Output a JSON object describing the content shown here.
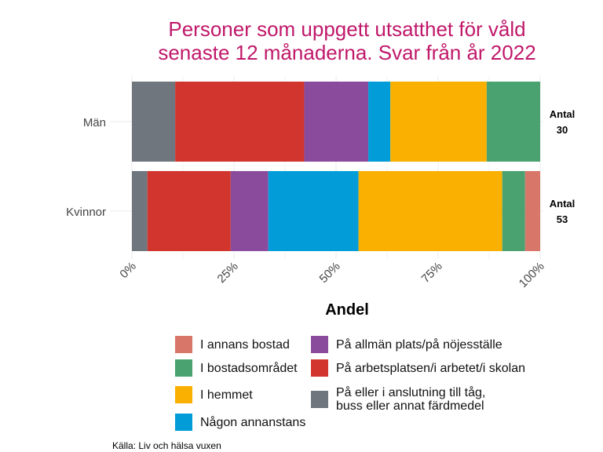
{
  "chart_data": {
    "type": "bar",
    "orientation": "horizontal",
    "stacked": true,
    "title": "Personer som uppgett utsatthet för våld senaste 12 månaderna. Svar från år 2022",
    "title_lines": [
      "Personer som uppgett utsatthet för våld",
      "senaste 12 månaderna. Svar från år 2022"
    ],
    "xlabel": "Andel",
    "ylabel": "",
    "xlim": [
      0,
      100
    ],
    "x_ticks": [
      "0%",
      "25%",
      "50%",
      "75%",
      "100%"
    ],
    "categories": [
      "Män",
      "Kvinnor"
    ],
    "counts": [
      {
        "label": "Antal",
        "value": "30"
      },
      {
        "label": "Antal",
        "value": "53"
      }
    ],
    "series": [
      {
        "name": "På eller i anslutning till tåg, buss eller annat färdmedel",
        "color": "#6f767e",
        "values": [
          10.6,
          3.8
        ]
      },
      {
        "name": "På arbetsplatsen/i arbetet/i skolan",
        "color": "#d1352e",
        "values": [
          31.6,
          20.4
        ]
      },
      {
        "name": "På allmän plats/på nöjesställe",
        "color": "#8a4b9c",
        "values": [
          15.7,
          9.2
        ]
      },
      {
        "name": "Någon annanstans",
        "color": "#029cd8",
        "values": [
          5.4,
          22.1
        ]
      },
      {
        "name": "I hemmet",
        "color": "#f9b000",
        "values": [
          23.6,
          35.2
        ]
      },
      {
        "name": "I bostadsområdet",
        "color": "#4aa271",
        "values": [
          13.1,
          5.6
        ]
      },
      {
        "name": "I annans bostad",
        "color": "#d8766a",
        "values": [
          0,
          3.7
        ]
      }
    ],
    "legend": [
      {
        "label": "I annans bostad",
        "color": "#d8766a"
      },
      {
        "label": "I bostadsområdet",
        "color": "#4aa271"
      },
      {
        "label": "I hemmet",
        "color": "#f9b000"
      },
      {
        "label": "Någon annanstans",
        "color": "#029cd8"
      },
      {
        "label": "På allmän plats/på nöjesställe",
        "color": "#8a4b9c"
      },
      {
        "label": "På arbetsplatsen/i arbetet/i skolan",
        "color": "#d1352e"
      },
      {
        "label": "På eller i anslutning till tåg,\nbuss eller annat färdmedel",
        "color": "#6f767e"
      }
    ],
    "legend_placement": "bottom",
    "source": "Källa: Liv och hälsa vuxen"
  }
}
